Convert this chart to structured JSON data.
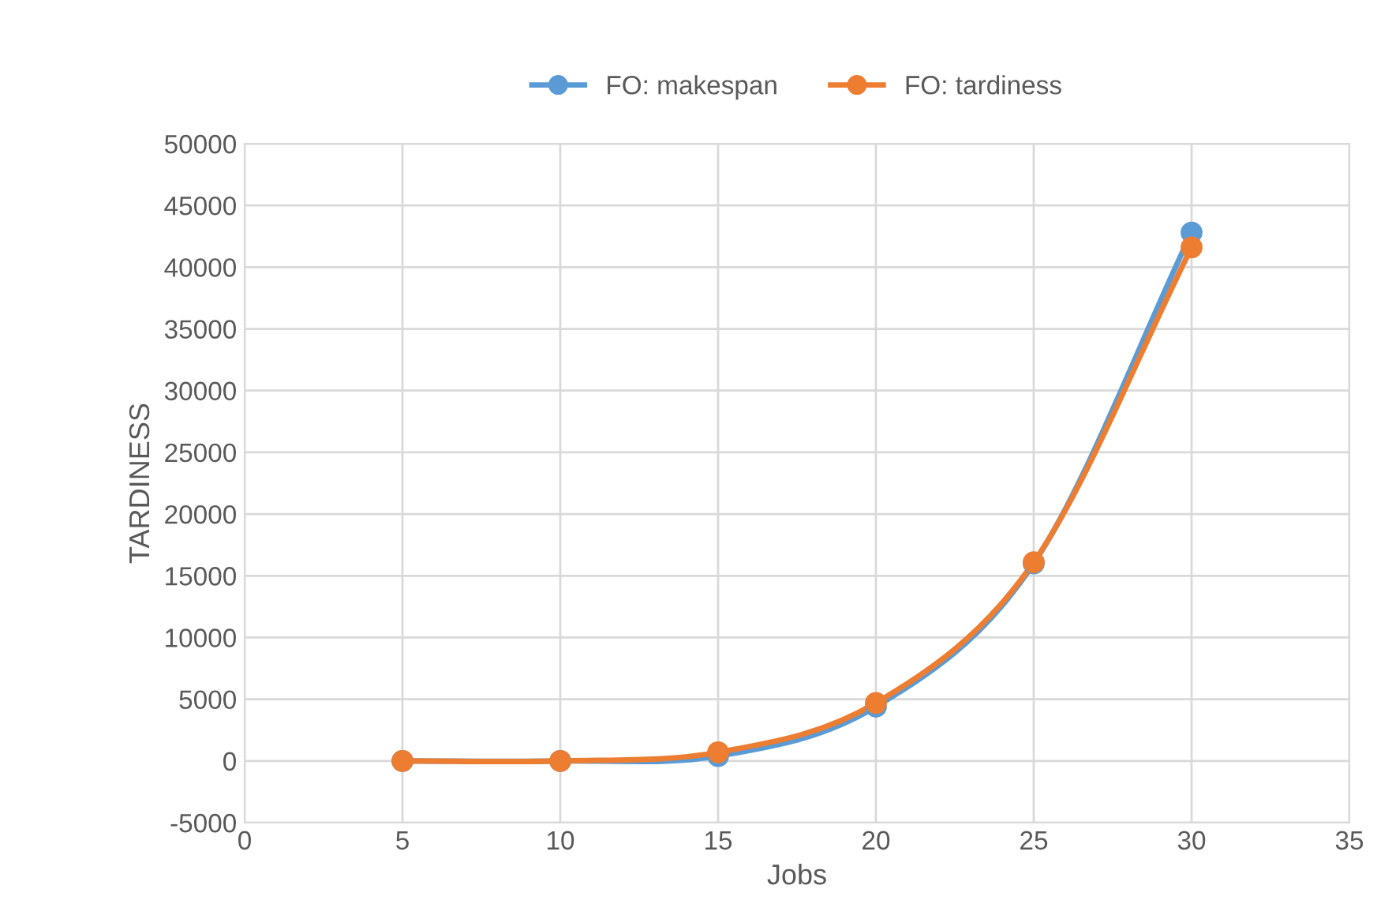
{
  "chart_data": {
    "type": "line",
    "xlabel": "Jobs",
    "ylabel": "TARDINESS",
    "x": [
      5,
      10,
      15,
      20,
      25,
      30
    ],
    "series": [
      {
        "name": "FO: makespan",
        "color": "#5b9bd5",
        "values": [
          0,
          0,
          400,
          4400,
          16000,
          42800
        ]
      },
      {
        "name": "FO: tardiness",
        "color": "#ed7d31",
        "values": [
          0,
          0,
          700,
          4700,
          16100,
          41600
        ]
      }
    ],
    "xlim": [
      0,
      35
    ],
    "xticks": [
      0,
      5,
      10,
      15,
      20,
      25,
      30,
      35
    ],
    "ylim": [
      -5000,
      50000
    ],
    "yticks": [
      -5000,
      0,
      5000,
      10000,
      15000,
      20000,
      25000,
      30000,
      35000,
      40000,
      45000,
      50000
    ],
    "grid": true,
    "legend": "top",
    "marker": "circle",
    "line_style": "solid"
  }
}
